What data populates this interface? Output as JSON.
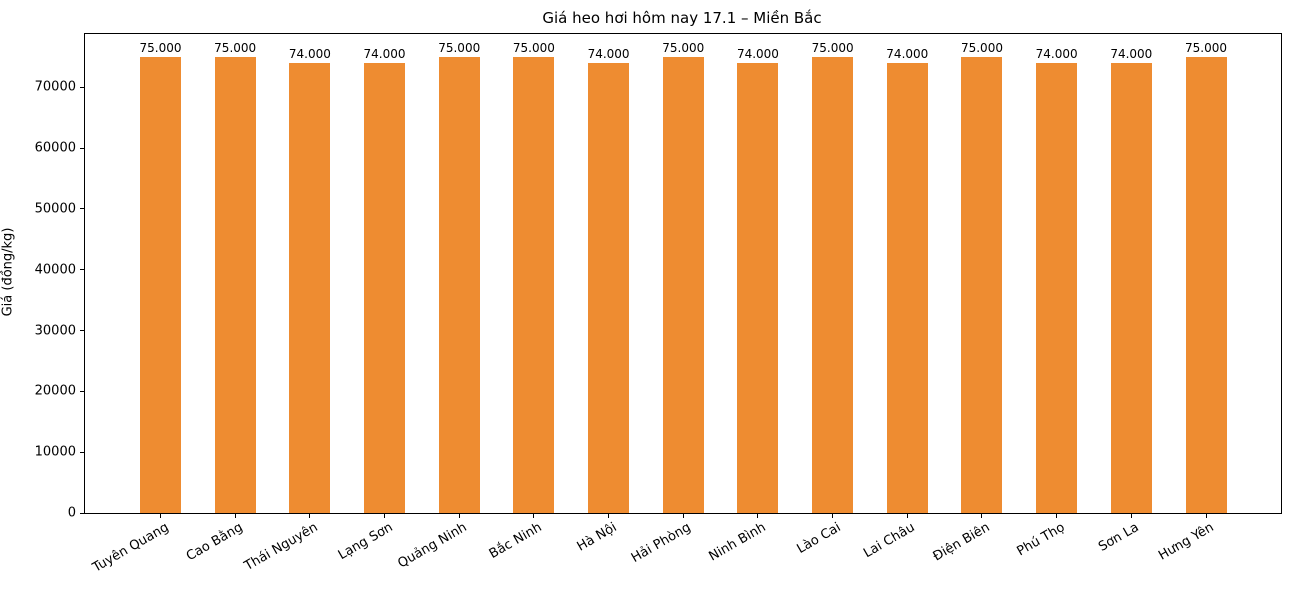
{
  "figure": {
    "title": "Giá heo hơi hôm nay 17.1 – Miền Bắc",
    "ylabel": "Giá (đồng/kg)"
  },
  "chart_data": {
    "type": "bar",
    "title": "Giá heo hơi hôm nay 17.1 – Miền Bắc",
    "xlabel": "",
    "ylabel": "Giá (đồng/kg)",
    "categories": [
      "Tuyên Quang",
      "Cao Bằng",
      "Thái Nguyên",
      "Lạng Sơn",
      "Quảng Ninh",
      "Bắc Ninh",
      "Hà Nội",
      "Hải Phòng",
      "Ninh Bình",
      "Lào Cai",
      "Lai Châu",
      "Điện Biên",
      "Phú Thọ",
      "Sơn La",
      "Hưng Yên"
    ],
    "values": [
      75000,
      75000,
      74000,
      74000,
      75000,
      75000,
      74000,
      75000,
      74000,
      75000,
      74000,
      75000,
      74000,
      74000,
      75000
    ],
    "value_labels": [
      "75.000",
      "75.000",
      "74.000",
      "74.000",
      "75.000",
      "75.000",
      "74.000",
      "75.000",
      "74.000",
      "75.000",
      "74.000",
      "75.000",
      "74.000",
      "74.000",
      "75.000"
    ],
    "yticks": [
      0,
      10000,
      20000,
      30000,
      40000,
      50000,
      60000,
      70000
    ],
    "ytick_labels": [
      "0",
      "10000",
      "20000",
      "30000",
      "40000",
      "50000",
      "60000",
      "70000"
    ],
    "ylim": [
      0,
      78750
    ],
    "bar_color": "#ee8c31",
    "grid": false,
    "legend_position": "none",
    "x_tick_rotation_deg": 30
  }
}
